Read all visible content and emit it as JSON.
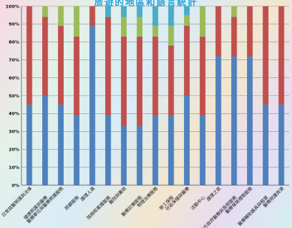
{
  "chart_data": {
    "type": "bar",
    "stacked": true,
    "percent_stacked": true,
    "title": "旅遊的地區和語言統計",
    "xlabel": "",
    "ylabel": "",
    "ylim": [
      0,
      100
    ],
    "ytick_labels": [
      "0%",
      "10%",
      "20%",
      "30%",
      "40%",
      "50%",
      "60%",
      "70%",
      "80%",
      "90%",
      "100%"
    ],
    "grid": true,
    "legend": "none",
    "categories": [
      "日常就醫照護與法律",
      "健康照護與醫療",
      "醫療單位與醫療照護服務",
      "照顧服務",
      "護理人員",
      "陪病和看護服務",
      "醫院與藥局",
      "醫療診療服務",
      "物理治療服務",
      "勞工保險",
      "社區保健與醫療",
      "活動中心",
      "護理之家",
      "地方政府醫療與長照服務",
      "醫療保險理賠服務",
      "醫療輔助器具與租賃",
      "醫療照護資源"
    ],
    "series": [
      {
        "color": "#4f81bd",
        "values": [
          45,
          50,
          45,
          39,
          89,
          39,
          33,
          33,
          39,
          39,
          50,
          39,
          72,
          72,
          72,
          45,
          45
        ]
      },
      {
        "color": "#c0504d",
        "values": [
          55,
          44,
          44,
          44,
          11,
          55,
          50,
          50,
          44,
          39,
          39,
          44,
          28,
          22,
          28,
          55,
          55
        ]
      },
      {
        "color": "#9bbb59",
        "values": [
          0,
          6,
          11,
          17,
          0,
          0,
          11,
          11,
          6,
          11,
          6,
          17,
          0,
          6,
          0,
          0,
          0
        ]
      },
      {
        "color": "#4bacc6",
        "values": [
          0,
          0,
          0,
          0,
          0,
          6,
          6,
          6,
          11,
          11,
          5,
          0,
          0,
          0,
          0,
          0,
          0
        ]
      }
    ]
  }
}
